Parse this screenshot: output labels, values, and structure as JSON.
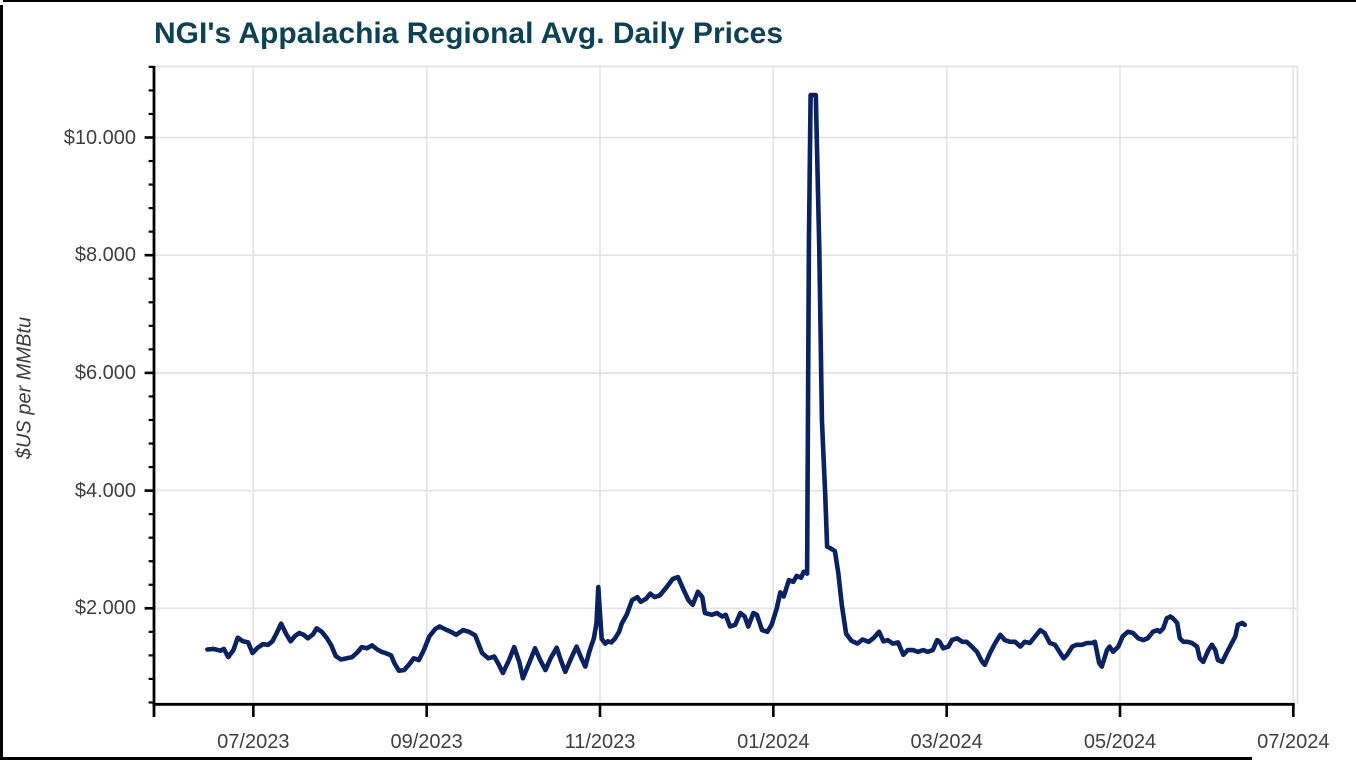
{
  "page": {
    "title": "NGI's Appalachia Regional Avg. Daily Prices"
  },
  "chart_data": {
    "type": "line",
    "title": "NGI's Appalachia Regional Avg. Daily Prices",
    "xlabel": "",
    "ylabel": "$US per MMBtu",
    "legend": "none",
    "grid": "on",
    "ylim": [
      0.36,
      11.2
    ],
    "y_ticks": {
      "values": [
        2,
        4,
        6,
        8,
        10
      ],
      "labels": [
        "$2.000",
        "$4.000",
        "$6.000",
        "$8.000",
        "$10.000"
      ],
      "minor_step": 0.4
    },
    "x_ticks": {
      "labels": [
        "07/2023",
        "09/2023",
        "11/2023",
        "01/2024",
        "03/2024",
        "05/2024",
        "07/2024"
      ],
      "month_offsets": [
        1,
        3,
        5,
        7,
        9,
        11,
        13
      ],
      "unit": "months since 2023-06-01"
    },
    "series": [
      {
        "name": "price",
        "x_unit": "months since 2023-06-01",
        "y_unit": "$US per MMBtu",
        "points": [
          [
            0.47,
            1.3
          ],
          [
            0.54,
            1.31
          ],
          [
            0.62,
            1.28
          ],
          [
            0.66,
            1.31
          ],
          [
            0.71,
            1.17
          ],
          [
            0.77,
            1.29
          ],
          [
            0.82,
            1.5
          ],
          [
            0.88,
            1.44
          ],
          [
            0.94,
            1.42
          ],
          [
            0.99,
            1.24
          ],
          [
            1.05,
            1.33
          ],
          [
            1.11,
            1.39
          ],
          [
            1.17,
            1.38
          ],
          [
            1.22,
            1.44
          ],
          [
            1.27,
            1.58
          ],
          [
            1.32,
            1.74
          ],
          [
            1.38,
            1.56
          ],
          [
            1.43,
            1.44
          ],
          [
            1.48,
            1.53
          ],
          [
            1.53,
            1.58
          ],
          [
            1.58,
            1.55
          ],
          [
            1.63,
            1.49
          ],
          [
            1.69,
            1.56
          ],
          [
            1.73,
            1.66
          ],
          [
            1.79,
            1.6
          ],
          [
            1.85,
            1.49
          ],
          [
            1.9,
            1.37
          ],
          [
            1.95,
            1.19
          ],
          [
            2.01,
            1.13
          ],
          [
            2.08,
            1.15
          ],
          [
            2.14,
            1.17
          ],
          [
            2.2,
            1.25
          ],
          [
            2.25,
            1.34
          ],
          [
            2.31,
            1.32
          ],
          [
            2.37,
            1.37
          ],
          [
            2.43,
            1.3
          ],
          [
            2.48,
            1.26
          ],
          [
            2.54,
            1.23
          ],
          [
            2.59,
            1.2
          ],
          [
            2.63,
            1.06
          ],
          [
            2.68,
            0.94
          ],
          [
            2.74,
            0.95
          ],
          [
            2.8,
            1.05
          ],
          [
            2.85,
            1.15
          ],
          [
            2.91,
            1.12
          ],
          [
            2.97,
            1.3
          ],
          [
            3.03,
            1.52
          ],
          [
            3.1,
            1.65
          ],
          [
            3.15,
            1.69
          ],
          [
            3.22,
            1.64
          ],
          [
            3.28,
            1.6
          ],
          [
            3.34,
            1.55
          ],
          [
            3.42,
            1.63
          ],
          [
            3.49,
            1.6
          ],
          [
            3.56,
            1.54
          ],
          [
            3.64,
            1.24
          ],
          [
            3.71,
            1.15
          ],
          [
            3.78,
            1.18
          ],
          [
            3.83,
            1.05
          ],
          [
            3.88,
            0.9
          ],
          [
            3.95,
            1.12
          ],
          [
            4.01,
            1.34
          ],
          [
            4.07,
            1.08
          ],
          [
            4.11,
            0.81
          ],
          [
            4.18,
            1.06
          ],
          [
            4.25,
            1.32
          ],
          [
            4.31,
            1.12
          ],
          [
            4.37,
            0.95
          ],
          [
            4.43,
            1.15
          ],
          [
            4.5,
            1.33
          ],
          [
            4.55,
            1.11
          ],
          [
            4.6,
            0.92
          ],
          [
            4.67,
            1.16
          ],
          [
            4.73,
            1.35
          ],
          [
            4.78,
            1.17
          ],
          [
            4.83,
            1.01
          ],
          [
            4.88,
            1.28
          ],
          [
            4.93,
            1.49
          ],
          [
            4.96,
            1.75
          ],
          [
            4.98,
            2.36
          ],
          [
            5.0,
            1.9
          ],
          [
            5.02,
            1.48
          ],
          [
            5.06,
            1.4
          ],
          [
            5.09,
            1.44
          ],
          [
            5.13,
            1.42
          ],
          [
            5.17,
            1.48
          ],
          [
            5.22,
            1.6
          ],
          [
            5.25,
            1.74
          ],
          [
            5.31,
            1.9
          ],
          [
            5.37,
            2.14
          ],
          [
            5.43,
            2.19
          ],
          [
            5.47,
            2.11
          ],
          [
            5.53,
            2.16
          ],
          [
            5.58,
            2.25
          ],
          [
            5.63,
            2.19
          ],
          [
            5.69,
            2.22
          ],
          [
            5.77,
            2.36
          ],
          [
            5.84,
            2.5
          ],
          [
            5.9,
            2.53
          ],
          [
            5.96,
            2.33
          ],
          [
            6.02,
            2.14
          ],
          [
            6.07,
            2.06
          ],
          [
            6.13,
            2.28
          ],
          [
            6.18,
            2.19
          ],
          [
            6.21,
            1.92
          ],
          [
            6.29,
            1.89
          ],
          [
            6.35,
            1.92
          ],
          [
            6.41,
            1.86
          ],
          [
            6.45,
            1.89
          ],
          [
            6.5,
            1.69
          ],
          [
            6.56,
            1.72
          ],
          [
            6.62,
            1.92
          ],
          [
            6.67,
            1.86
          ],
          [
            6.71,
            1.69
          ],
          [
            6.77,
            1.92
          ],
          [
            6.81,
            1.89
          ],
          [
            6.87,
            1.63
          ],
          [
            6.93,
            1.6
          ],
          [
            6.98,
            1.72
          ],
          [
            7.04,
            2.0
          ],
          [
            7.08,
            2.27
          ],
          [
            7.12,
            2.2
          ],
          [
            7.18,
            2.48
          ],
          [
            7.23,
            2.45
          ],
          [
            7.27,
            2.55
          ],
          [
            7.32,
            2.52
          ],
          [
            7.35,
            2.62
          ],
          [
            7.39,
            2.59
          ],
          [
            7.41,
            8.2
          ],
          [
            7.43,
            10.72
          ],
          [
            7.49,
            10.72
          ],
          [
            7.53,
            8.1
          ],
          [
            7.56,
            5.2
          ],
          [
            7.6,
            3.9
          ],
          [
            7.62,
            3.05
          ],
          [
            7.68,
            3.0
          ],
          [
            7.71,
            2.97
          ],
          [
            7.75,
            2.6
          ],
          [
            7.79,
            2.06
          ],
          [
            7.84,
            1.57
          ],
          [
            7.9,
            1.45
          ],
          [
            7.97,
            1.4
          ],
          [
            8.03,
            1.47
          ],
          [
            8.1,
            1.43
          ],
          [
            8.16,
            1.5
          ],
          [
            8.22,
            1.6
          ],
          [
            8.27,
            1.44
          ],
          [
            8.32,
            1.46
          ],
          [
            8.38,
            1.4
          ],
          [
            8.44,
            1.42
          ],
          [
            8.5,
            1.21
          ],
          [
            8.55,
            1.29
          ],
          [
            8.61,
            1.29
          ],
          [
            8.67,
            1.26
          ],
          [
            8.73,
            1.29
          ],
          [
            8.78,
            1.26
          ],
          [
            8.84,
            1.29
          ],
          [
            8.89,
            1.46
          ],
          [
            8.92,
            1.43
          ],
          [
            8.96,
            1.32
          ],
          [
            9.02,
            1.35
          ],
          [
            9.06,
            1.46
          ],
          [
            9.12,
            1.49
          ],
          [
            9.18,
            1.43
          ],
          [
            9.23,
            1.43
          ],
          [
            9.29,
            1.35
          ],
          [
            9.35,
            1.26
          ],
          [
            9.41,
            1.09
          ],
          [
            9.44,
            1.04
          ],
          [
            9.5,
            1.24
          ],
          [
            9.56,
            1.41
          ],
          [
            9.62,
            1.55
          ],
          [
            9.67,
            1.46
          ],
          [
            9.73,
            1.43
          ],
          [
            9.79,
            1.43
          ],
          [
            9.85,
            1.35
          ],
          [
            9.9,
            1.43
          ],
          [
            9.96,
            1.41
          ],
          [
            10.02,
            1.52
          ],
          [
            10.08,
            1.63
          ],
          [
            10.13,
            1.58
          ],
          [
            10.19,
            1.41
          ],
          [
            10.25,
            1.38
          ],
          [
            10.31,
            1.24
          ],
          [
            10.35,
            1.15
          ],
          [
            10.39,
            1.21
          ],
          [
            10.45,
            1.35
          ],
          [
            10.5,
            1.38
          ],
          [
            10.56,
            1.38
          ],
          [
            10.62,
            1.41
          ],
          [
            10.68,
            1.41
          ],
          [
            10.71,
            1.43
          ],
          [
            10.76,
            1.07
          ],
          [
            10.79,
            1.01
          ],
          [
            10.85,
            1.29
          ],
          [
            10.88,
            1.35
          ],
          [
            10.92,
            1.26
          ],
          [
            10.98,
            1.35
          ],
          [
            11.03,
            1.52
          ],
          [
            11.09,
            1.6
          ],
          [
            11.15,
            1.58
          ],
          [
            11.21,
            1.49
          ],
          [
            11.27,
            1.46
          ],
          [
            11.32,
            1.49
          ],
          [
            11.38,
            1.6
          ],
          [
            11.43,
            1.63
          ],
          [
            11.46,
            1.6
          ],
          [
            11.5,
            1.66
          ],
          [
            11.54,
            1.83
          ],
          [
            11.58,
            1.86
          ],
          [
            11.61,
            1.83
          ],
          [
            11.66,
            1.75
          ],
          [
            11.69,
            1.49
          ],
          [
            11.73,
            1.43
          ],
          [
            11.78,
            1.43
          ],
          [
            11.83,
            1.41
          ],
          [
            11.89,
            1.35
          ],
          [
            11.92,
            1.15
          ],
          [
            11.96,
            1.09
          ],
          [
            12.02,
            1.29
          ],
          [
            12.06,
            1.38
          ],
          [
            12.1,
            1.29
          ],
          [
            12.13,
            1.12
          ],
          [
            12.18,
            1.09
          ],
          [
            12.23,
            1.24
          ],
          [
            12.29,
            1.41
          ],
          [
            12.33,
            1.52
          ],
          [
            12.36,
            1.72
          ],
          [
            12.41,
            1.75
          ],
          [
            12.44,
            1.72
          ]
        ]
      }
    ],
    "colors": {
      "line": "#0a2262",
      "title": "#0d4254",
      "tick_label": "#3f3f3f",
      "gridline": "#e3e3e3",
      "axis": "#000000"
    }
  }
}
